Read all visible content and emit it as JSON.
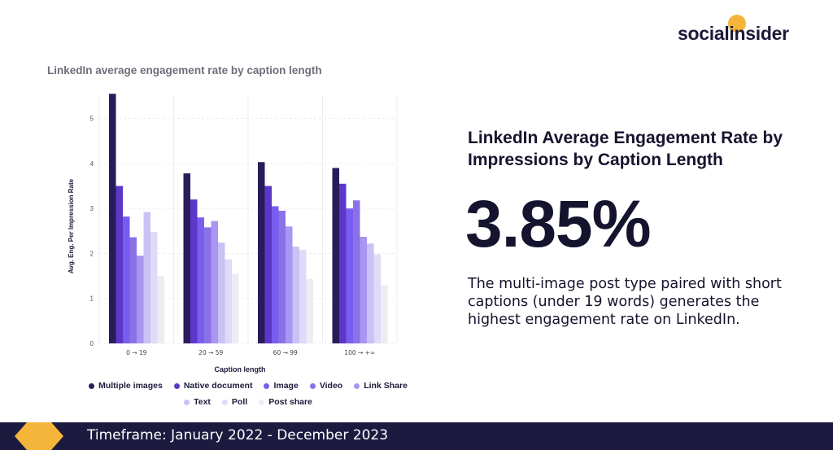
{
  "brand": {
    "name_part1": "social",
    "name_part2": "insider",
    "accent": "#f5b53b",
    "logo_icon": "smiley-dot-icon"
  },
  "right_panel": {
    "title": "LinkedIn Average Engagement Rate by Impressions by Caption Length",
    "big_number": "3.85%",
    "description": "The multi-image post type paired with short captions (under 19 words) generates the highest engagement rate on LinkedIn."
  },
  "footer": {
    "text": "Timeframe: January 2022 - December 2023"
  },
  "chart_data": {
    "type": "bar",
    "title": "LinkedIn average engagement rate by caption length",
    "xlabel": "Caption length",
    "ylabel": "Avg. Eng. Per Impression Rate",
    "ylim": [
      0,
      5.5
    ],
    "yticks": [
      0,
      1,
      2,
      3,
      4,
      5
    ],
    "grid": true,
    "legend_position": "bottom",
    "categories": [
      "0 → 19",
      "20 → 59",
      "60 → 99",
      "100 → +∞"
    ],
    "series": [
      {
        "name": "Multiple images",
        "color": "#2a1c5a",
        "values": [
          5.55,
          3.78,
          4.03,
          3.9
        ]
      },
      {
        "name": "Native document",
        "color": "#5b38c8",
        "values": [
          3.5,
          3.2,
          3.5,
          3.55
        ]
      },
      {
        "name": "Image",
        "color": "#7a5cf0",
        "values": [
          2.82,
          2.8,
          3.05,
          3.0
        ]
      },
      {
        "name": "Video",
        "color": "#8a72e6",
        "values": [
          2.36,
          2.58,
          2.95,
          3.18
        ]
      },
      {
        "name": "Link Share",
        "color": "#a896f2",
        "values": [
          1.95,
          2.72,
          2.6,
          2.37
        ]
      },
      {
        "name": "Text",
        "color": "#c9c2f5",
        "values": [
          2.92,
          2.24,
          2.15,
          2.22
        ]
      },
      {
        "name": "Poll",
        "color": "#dedaf8",
        "values": [
          2.48,
          1.87,
          2.08,
          1.98
        ]
      },
      {
        "name": "Post share",
        "color": "#ececf2",
        "values": [
          1.5,
          1.55,
          1.43,
          1.3
        ]
      }
    ]
  }
}
